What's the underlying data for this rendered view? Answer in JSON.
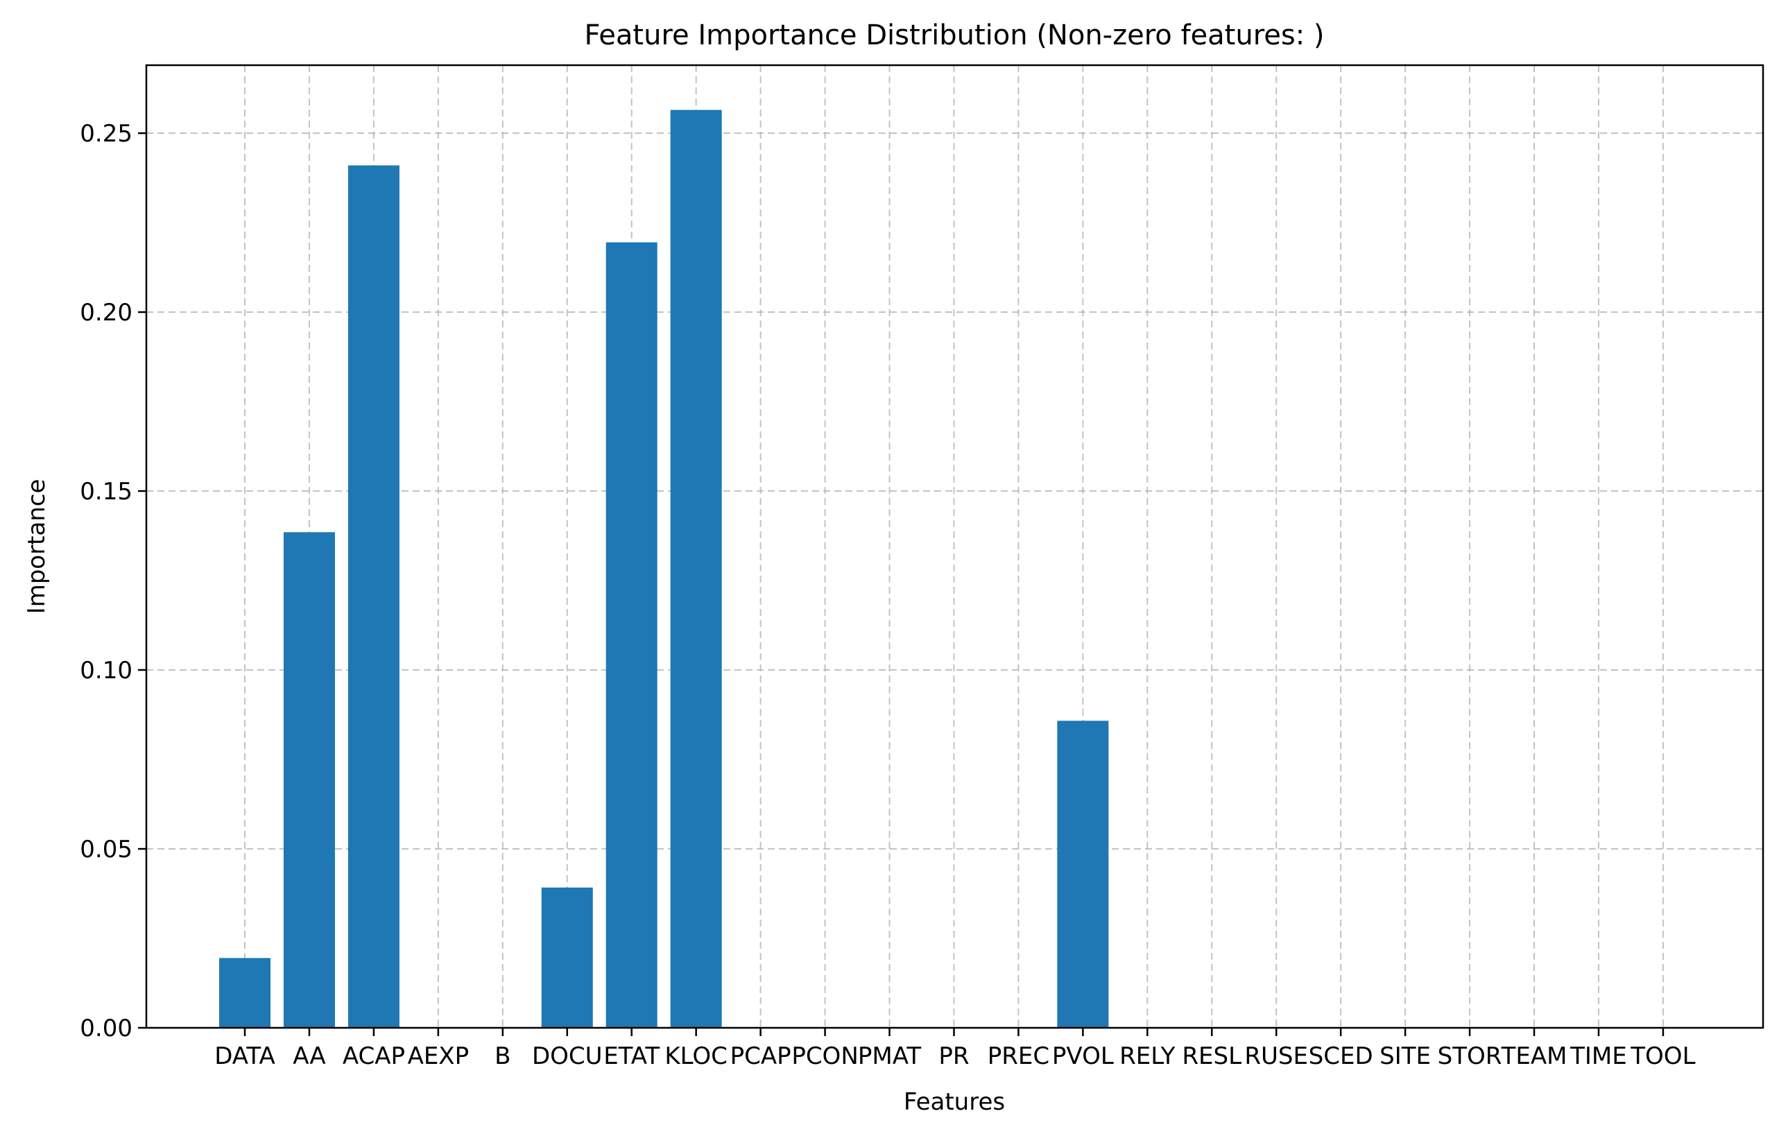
{
  "chart_data": {
    "type": "bar",
    "title": "Feature Importance Distribution (Non-zero features: )",
    "xlabel": "Features",
    "ylabel": "Importance",
    "categories": [
      "DATA",
      "AA",
      "ACAP",
      "AEXP",
      "B",
      "DOCU",
      "ETAT",
      "KLOC",
      "PCAP",
      "PCON",
      "PMAT",
      "PR",
      "PREC",
      "PVOL",
      "RELY",
      "RESL",
      "RUSE",
      "SCED",
      "SITE",
      "STOR",
      "TEAM",
      "TIME",
      "TOOL"
    ],
    "values": [
      0.0195,
      0.1385,
      0.241,
      0,
      0,
      0.0392,
      0.2195,
      0.2565,
      0,
      0,
      0,
      0,
      0,
      0.0858,
      0,
      0,
      0,
      0,
      0,
      0,
      0,
      0,
      0
    ],
    "ylim": [
      0,
      0.269
    ],
    "yticks": [
      0.0,
      0.05,
      0.1,
      0.15,
      0.2,
      0.25
    ],
    "ytick_labels": [
      "0.00",
      "0.05",
      "0.10",
      "0.15",
      "0.20",
      "0.25"
    ],
    "grid": true,
    "bar_color": "#1f77b4"
  }
}
